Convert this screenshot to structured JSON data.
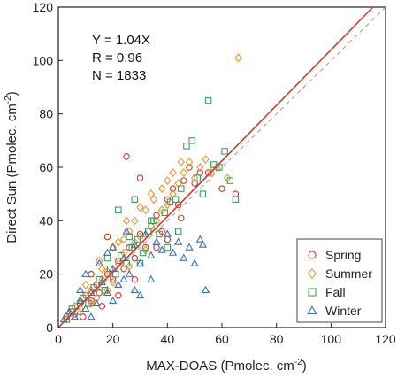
{
  "chart_data": {
    "type": "scatter",
    "xlabel": "MAX-DOAS (Pmolec. cm",
    "xlabel_sup": "-2",
    "xlabel_tail": ")",
    "ylabel": "Direct Sun (Pmolec. cm",
    "ylabel_sup": "-2",
    "ylabel_tail": ")",
    "xlim": [
      0,
      120
    ],
    "ylim": [
      0,
      120
    ],
    "xticks": [
      0,
      20,
      40,
      60,
      80,
      100,
      120
    ],
    "yticks": [
      0,
      20,
      40,
      60,
      80,
      100,
      120
    ],
    "grid": false,
    "legend_position": "bottom-right",
    "annotations": [
      "Y = 1.04X",
      "R = 0.96",
      "N = 1833"
    ],
    "fit_line": {
      "slope": 1.04,
      "intercept": 0,
      "color": "#d1392b",
      "style": "solid"
    },
    "one_to_one_line": {
      "slope": 1,
      "intercept": 0,
      "color": "#9a9a9a",
      "style": "dashed"
    },
    "series": [
      {
        "name": "Spring",
        "marker": "circle",
        "color": "#d1392b",
        "points": [
          [
            3,
            4
          ],
          [
            5,
            6
          ],
          [
            6,
            5
          ],
          [
            8,
            9
          ],
          [
            10,
            12
          ],
          [
            12,
            10
          ],
          [
            14,
            16
          ],
          [
            15,
            13
          ],
          [
            18,
            20
          ],
          [
            20,
            18
          ],
          [
            22,
            25
          ],
          [
            24,
            22
          ],
          [
            26,
            30
          ],
          [
            28,
            26
          ],
          [
            30,
            35
          ],
          [
            32,
            30
          ],
          [
            34,
            38
          ],
          [
            36,
            42
          ],
          [
            38,
            36
          ],
          [
            40,
            48
          ],
          [
            42,
            52
          ],
          [
            44,
            46
          ],
          [
            46,
            55
          ],
          [
            48,
            60
          ],
          [
            50,
            54
          ],
          [
            52,
            58
          ],
          [
            25,
            64
          ],
          [
            30,
            56
          ],
          [
            36,
            30
          ],
          [
            40,
            33
          ],
          [
            45,
            41
          ],
          [
            55,
            58
          ],
          [
            60,
            52
          ],
          [
            65,
            50
          ],
          [
            18,
            34
          ],
          [
            22,
            12
          ],
          [
            28,
            18
          ],
          [
            12,
            20
          ],
          [
            16,
            8
          ],
          [
            9,
            4
          ]
        ]
      },
      {
        "name": "Summer",
        "marker": "diamond",
        "color": "#f0922b",
        "points": [
          [
            4,
            5
          ],
          [
            6,
            8
          ],
          [
            8,
            7
          ],
          [
            10,
            12
          ],
          [
            12,
            14
          ],
          [
            14,
            11
          ],
          [
            16,
            18
          ],
          [
            18,
            21
          ],
          [
            20,
            17
          ],
          [
            22,
            24
          ],
          [
            24,
            28
          ],
          [
            26,
            23
          ],
          [
            28,
            32
          ],
          [
            30,
            34
          ],
          [
            32,
            29
          ],
          [
            34,
            38
          ],
          [
            36,
            40
          ],
          [
            38,
            44
          ],
          [
            40,
            46
          ],
          [
            42,
            50
          ],
          [
            44,
            54
          ],
          [
            46,
            58
          ],
          [
            48,
            62
          ],
          [
            50,
            56
          ],
          [
            52,
            60
          ],
          [
            54,
            63
          ],
          [
            56,
            58
          ],
          [
            58,
            60
          ],
          [
            62,
            56
          ],
          [
            66,
            101
          ],
          [
            20,
            30
          ],
          [
            25,
            40
          ],
          [
            30,
            45
          ],
          [
            15,
            25
          ],
          [
            35,
            48
          ],
          [
            40,
            55
          ],
          [
            45,
            62
          ],
          [
            18,
            14
          ],
          [
            26,
            36
          ],
          [
            32,
            44
          ],
          [
            38,
            52
          ],
          [
            24,
            33
          ],
          [
            10,
            16
          ],
          [
            8,
            10
          ],
          [
            12,
            9
          ],
          [
            28,
            40
          ],
          [
            34,
            50
          ],
          [
            42,
            58
          ],
          [
            22,
            32
          ],
          [
            16,
            22
          ]
        ]
      },
      {
        "name": "Fall",
        "marker": "square",
        "color": "#3aa05a",
        "points": [
          [
            3,
            3
          ],
          [
            5,
            7
          ],
          [
            7,
            6
          ],
          [
            9,
            11
          ],
          [
            11,
            9
          ],
          [
            13,
            15
          ],
          [
            15,
            18
          ],
          [
            17,
            14
          ],
          [
            19,
            22
          ],
          [
            21,
            20
          ],
          [
            23,
            27
          ],
          [
            25,
            24
          ],
          [
            27,
            30
          ],
          [
            29,
            33
          ],
          [
            31,
            28
          ],
          [
            33,
            36
          ],
          [
            35,
            40
          ],
          [
            37,
            35
          ],
          [
            39,
            43
          ],
          [
            41,
            47
          ],
          [
            43,
            48
          ],
          [
            45,
            52
          ],
          [
            47,
            68
          ],
          [
            49,
            70
          ],
          [
            51,
            56
          ],
          [
            53,
            50
          ],
          [
            55,
            85
          ],
          [
            57,
            61
          ],
          [
            59,
            60
          ],
          [
            61,
            66
          ],
          [
            63,
            55
          ],
          [
            65,
            48
          ],
          [
            22,
            44
          ],
          [
            28,
            48
          ],
          [
            34,
            40
          ],
          [
            40,
            30
          ],
          [
            44,
            36
          ],
          [
            18,
            26
          ],
          [
            26,
            34
          ],
          [
            30,
            24
          ]
        ]
      },
      {
        "name": "Winter",
        "marker": "triangle",
        "color": "#3c6fb0",
        "points": [
          [
            2,
            3
          ],
          [
            4,
            6
          ],
          [
            6,
            4
          ],
          [
            8,
            10
          ],
          [
            10,
            7
          ],
          [
            12,
            13
          ],
          [
            14,
            9
          ],
          [
            16,
            17
          ],
          [
            18,
            13
          ],
          [
            20,
            22
          ],
          [
            22,
            16
          ],
          [
            24,
            26
          ],
          [
            26,
            20
          ],
          [
            28,
            31
          ],
          [
            30,
            24
          ],
          [
            32,
            35
          ],
          [
            34,
            27
          ],
          [
            36,
            32
          ],
          [
            38,
            29
          ],
          [
            40,
            35
          ],
          [
            42,
            28
          ],
          [
            44,
            32
          ],
          [
            46,
            26
          ],
          [
            48,
            30
          ],
          [
            50,
            24
          ],
          [
            52,
            33
          ],
          [
            53,
            31
          ],
          [
            54,
            14
          ],
          [
            10,
            20
          ],
          [
            15,
            24
          ],
          [
            20,
            30
          ],
          [
            25,
            36
          ],
          [
            12,
            4
          ],
          [
            20,
            10
          ],
          [
            28,
            14
          ],
          [
            34,
            18
          ],
          [
            8,
            14
          ],
          [
            30,
            12
          ],
          [
            24,
            18
          ],
          [
            18,
            28
          ]
        ]
      }
    ]
  }
}
